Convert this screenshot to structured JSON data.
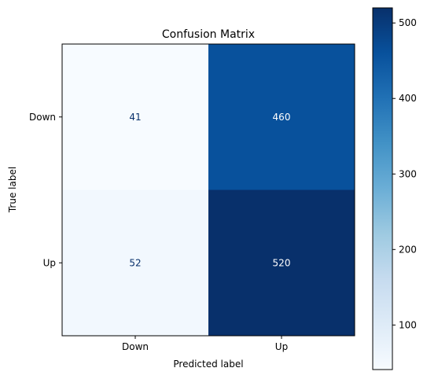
{
  "chart_data": {
    "type": "heatmap",
    "title": "Confusion Matrix",
    "xlabel": "Predicted label",
    "ylabel": "True label",
    "x_categories": [
      "Down",
      "Up"
    ],
    "y_categories": [
      "Down",
      "Up"
    ],
    "values": [
      [
        41,
        460
      ],
      [
        52,
        520
      ]
    ],
    "colormap": "Blues",
    "color_range": [
      41,
      520
    ],
    "colorbar_ticks": [
      "100",
      "200",
      "300",
      "400",
      "500"
    ],
    "colorbar_tick_values": [
      100,
      200,
      300,
      400,
      500
    ],
    "grid": false,
    "text_color_dark": "#08306b",
    "text_color_light": "#ffffff"
  }
}
